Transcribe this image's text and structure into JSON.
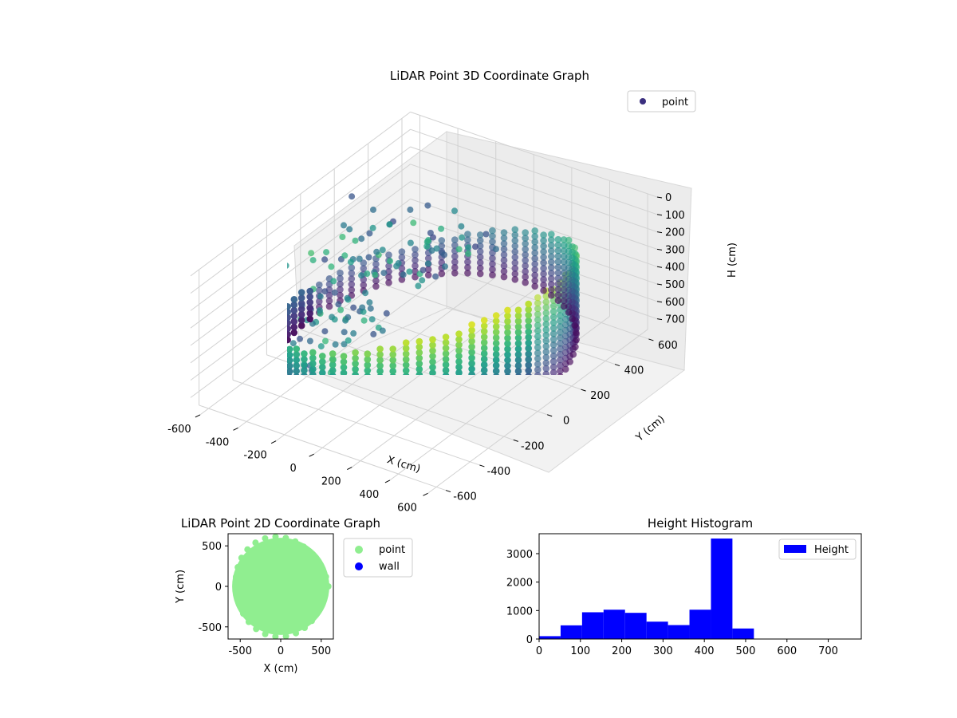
{
  "chart_data": [
    {
      "type": "scatter3d",
      "title": "LiDAR Point 3D Coordinate Graph",
      "xlabel": "X (cm)",
      "ylabel": "Y (cm)",
      "zlabel": "H (cm)",
      "xlim": [
        -650,
        650
      ],
      "ylim": [
        -650,
        650
      ],
      "zlim": [
        780,
        0
      ],
      "x_ticks": [
        -600,
        -400,
        -200,
        0,
        200,
        400,
        600
      ],
      "y_ticks": [
        -600,
        -400,
        -200,
        0,
        200,
        400,
        600
      ],
      "z_ticks": [
        0,
        100,
        200,
        300,
        400,
        500,
        600,
        700
      ],
      "legend": {
        "position": "top-right",
        "entries": [
          "point"
        ]
      },
      "colormap": "viridis",
      "series": [
        {
          "name": "point",
          "color": "#3b2f7f",
          "description_values": {
            "wall_radius": 600,
            "height_range": [
              0,
              420
            ]
          }
        }
      ]
    },
    {
      "type": "scatter",
      "title": "LiDAR Point 2D Coordinate Graph",
      "xlabel": "X (cm)",
      "ylabel": "Y (cm)",
      "xlim": [
        -650,
        650
      ],
      "ylim": [
        -650,
        650
      ],
      "x_ticks": [
        -500,
        0,
        500
      ],
      "y_ticks": [
        -500,
        0,
        500
      ],
      "legend": {
        "position": "outside-right",
        "entries": [
          "point",
          "wall"
        ]
      },
      "series": [
        {
          "name": "point",
          "color": "#90ee90",
          "shape": "disc",
          "radius": 600
        },
        {
          "name": "wall",
          "color": "#0000ff",
          "values": []
        }
      ]
    },
    {
      "type": "bar",
      "title": "Height Histogram",
      "xlim": [
        0,
        780
      ],
      "ylim": [
        0,
        3700
      ],
      "x_ticks": [
        0,
        100,
        200,
        300,
        400,
        500,
        600,
        700
      ],
      "y_ticks": [
        0,
        1000,
        2000,
        3000
      ],
      "legend": {
        "position": "top-right",
        "entries": [
          "Height"
        ]
      },
      "bin_width": 52,
      "bin_starts": [
        0,
        52,
        104,
        156,
        208,
        260,
        312,
        364,
        416,
        468,
        520,
        572,
        624,
        676,
        728
      ],
      "series": [
        {
          "name": "Height",
          "color": "#0000ff",
          "values": [
            100,
            480,
            940,
            1030,
            920,
            610,
            490,
            1030,
            3530,
            370,
            0,
            0,
            0,
            0,
            0
          ]
        }
      ]
    }
  ]
}
